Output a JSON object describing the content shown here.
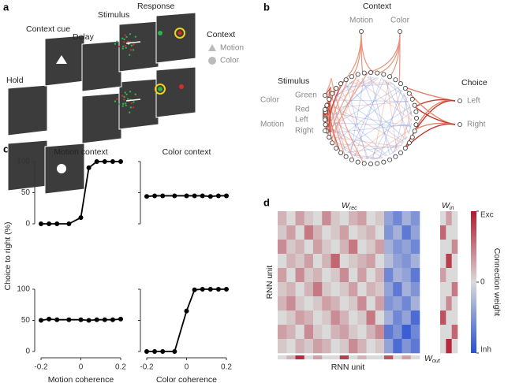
{
  "panel_letters": [
    "a",
    "b",
    "c",
    "d"
  ],
  "panel_a": {
    "stages": [
      "Hold",
      "Context cue",
      "Delay",
      "Stimulus",
      "Response"
    ],
    "legend_title": "Context",
    "legend": [
      "Motion",
      "Color"
    ]
  },
  "panel_b": {
    "context_title": "Context",
    "context_inputs": [
      "Motion",
      "Color"
    ],
    "stimulus_title": "Stimulus",
    "stimulus_groups": [
      "Color",
      "Motion"
    ],
    "stimulus_inputs": [
      "Green",
      "Red",
      "Left",
      "Right"
    ],
    "choice_title": "Choice",
    "choices": [
      "Left",
      "Right"
    ]
  },
  "panel_c": {
    "ylabel": "Choice to right (%)"
  },
  "chart_data": [
    {
      "type": "line",
      "title": "Motion context",
      "x": [
        -0.2,
        -0.16,
        -0.12,
        -0.06,
        0,
        0.04,
        0.08,
        0.12,
        0.16,
        0.2
      ],
      "series": [
        {
          "color": "#000",
          "values": [
            0,
            0,
            0,
            0,
            10,
            90,
            100,
            100,
            100,
            100
          ]
        }
      ],
      "xlim": [
        -0.2,
        0.2
      ],
      "ylim": [
        0,
        100
      ],
      "yticks": [
        0,
        50,
        100
      ],
      "ytick_labels": true
    },
    {
      "type": "line",
      "title": "Color context",
      "x": [
        -0.2,
        -0.16,
        -0.12,
        -0.06,
        0,
        0.04,
        0.08,
        0.12,
        0.16,
        0.2
      ],
      "series": [
        {
          "color": "#000",
          "values": [
            44,
            45,
            45,
            45,
            45,
            45,
            45,
            44,
            45,
            45
          ]
        }
      ],
      "xlim": [
        -0.2,
        0.2
      ],
      "ylim": [
        0,
        100
      ],
      "yticks": [
        0,
        50,
        100
      ],
      "ytick_labels": false
    },
    {
      "type": "line",
      "xlabel": "Motion coherence",
      "x": [
        -0.2,
        -0.16,
        -0.12,
        -0.06,
        0,
        0.04,
        0.08,
        0.12,
        0.16,
        0.2
      ],
      "series": [
        {
          "color": "#000",
          "values": [
            50,
            52,
            51,
            51,
            51,
            50,
            51,
            51,
            51,
            52
          ]
        }
      ],
      "xlim": [
        -0.2,
        0.2
      ],
      "ylim": [
        0,
        100
      ],
      "yticks": [
        0,
        50,
        100
      ],
      "xticks": [
        -0.2,
        0,
        0.2
      ],
      "ytick_labels": true
    },
    {
      "type": "line",
      "xlabel": "Color coherence",
      "x": [
        -0.2,
        -0.16,
        -0.12,
        -0.06,
        0,
        0.04,
        0.08,
        0.12,
        0.16,
        0.2
      ],
      "series": [
        {
          "color": "#000",
          "values": [
            0,
            0,
            0,
            0,
            65,
            99,
            100,
            100,
            100,
            100
          ]
        }
      ],
      "xlim": [
        -0.2,
        0.2
      ],
      "ylim": [
        0,
        100
      ],
      "yticks": [
        0,
        50,
        100
      ],
      "xticks": [
        -0.2,
        0,
        0.2
      ],
      "ytick_labels": false
    }
  ],
  "panel_d": {
    "w_rec": {
      "label": "W",
      "sub": "rec",
      "values": [
        [
          0.2,
          0,
          0.3,
          0.1,
          0,
          0.4,
          0.1,
          0,
          0.2,
          0.3,
          0,
          0.1,
          -0.4,
          -0.6,
          -0.3,
          -0.5
        ],
        [
          0.1,
          0.3,
          0,
          0.5,
          0.2,
          0,
          0.1,
          0.3,
          0,
          0.1,
          0.2,
          0,
          -0.5,
          -0.3,
          -0.7,
          -0.4
        ],
        [
          0.4,
          0.1,
          0.2,
          0,
          0.3,
          0.1,
          0,
          0.2,
          0.5,
          0,
          0.1,
          0.3,
          -0.3,
          -0.5,
          -0.4,
          -0.6
        ],
        [
          0,
          0.2,
          0.1,
          0.3,
          0,
          0.2,
          0.6,
          0,
          0.1,
          0.2,
          0.3,
          0,
          -0.2,
          -0.4,
          -0.5,
          -0.3
        ],
        [
          0.3,
          0,
          0.4,
          0.1,
          0.2,
          0,
          0.1,
          0.4,
          0,
          0.3,
          0,
          0.2,
          -0.6,
          -0.3,
          -0.4,
          -0.7
        ],
        [
          0.1,
          0.2,
          0,
          0.2,
          0.5,
          0.1,
          0,
          0.1,
          0.3,
          0,
          0.2,
          0.1,
          -0.4,
          -0.7,
          -0.3,
          -0.5
        ],
        [
          0.2,
          0.4,
          0.1,
          0,
          0.1,
          0.3,
          0.2,
          0,
          0.1,
          0.4,
          0,
          0.3,
          -0.5,
          -0.4,
          -0.6,
          -0.3
        ],
        [
          0,
          0.1,
          0.3,
          0.2,
          0,
          0.1,
          0.4,
          0.2,
          0,
          0.1,
          0.5,
          0,
          -0.3,
          -0.6,
          -0.4,
          -0.8
        ],
        [
          0.3,
          0.2,
          0,
          0.4,
          0.1,
          0,
          0.2,
          0.3,
          0.1,
          0,
          0.2,
          0.4,
          -0.7,
          -0.5,
          -0.9,
          -0.6
        ],
        [
          0.1,
          0,
          0.2,
          0.1,
          0.3,
          0.2,
          0,
          0.1,
          0.4,
          0.2,
          0,
          0.1,
          -0.4,
          -0.8,
          -0.5,
          -0.7
        ]
      ]
    },
    "w_in": {
      "label": "W",
      "sub": "in",
      "values": [
        [
          0,
          0.3,
          0
        ],
        [
          0.6,
          0,
          0
        ],
        [
          0,
          0,
          0.4
        ],
        [
          0,
          0.8,
          0
        ],
        [
          0.3,
          0,
          0
        ],
        [
          0,
          0,
          0.5
        ],
        [
          0,
          0.4,
          0
        ],
        [
          0.7,
          0,
          0
        ],
        [
          0,
          0,
          0.6
        ],
        [
          0,
          0.9,
          0
        ]
      ]
    },
    "w_out": {
      "label": "W",
      "sub": "out",
      "values": [
        0,
        0.2,
        0.9,
        0,
        0.3,
        0,
        0,
        0.8,
        0,
        0.2,
        0,
        0,
        0.7,
        0,
        0.3,
        0
      ]
    },
    "xlabel": "RNN unit",
    "ylabel": "RNN unit",
    "colorbar_label": "Connection weight",
    "clim": [
      -1,
      1
    ],
    "cticks": [
      {
        "value": 1,
        "label": "Exc"
      },
      0,
      {
        "value": -1,
        "label": "Inh"
      }
    ]
  }
}
